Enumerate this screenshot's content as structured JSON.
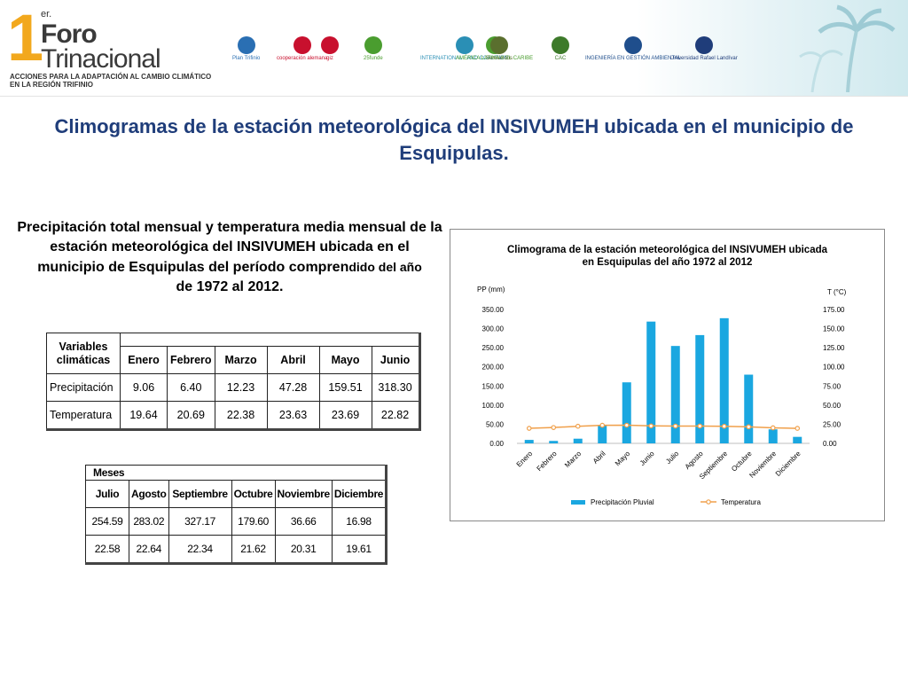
{
  "header": {
    "brand": {
      "number": "1",
      "superscript": "er.",
      "word1": "Foro",
      "word2": "Trinacional",
      "subtitle_line1": "ACCIONES PARA LA ADAPTACIÓN AL CAMBIO CLIMÁTICO",
      "subtitle_line2": "EN LA REGIÓN TRIFINIO"
    },
    "logos": [
      {
        "name": "plan-trifinio-logo",
        "label": "Plan Trifinio",
        "color": "#2a6fb3"
      },
      {
        "name": "cooperacion-alemana-logo",
        "label": "cooperación alemana",
        "color": "#c8102e"
      },
      {
        "name": "giz-logo",
        "label": "giz",
        "color": "#c8102e"
      },
      {
        "name": "25-funde-logo",
        "label": "25funde",
        "color": "#4a9d2f"
      },
      {
        "name": "international-land-coalition-logo",
        "label": "INTERNATIONAL LAND COALITION",
        "color": "#2a8fb5"
      },
      {
        "name": "america-latina-logo",
        "label": "AMÉRICA LATINA Y EL CARIBE",
        "color": "#4a9d2f"
      },
      {
        "name": "semiaridos-logo",
        "label": "Semiáridos",
        "color": "#5a6f2e"
      },
      {
        "name": "cac-logo",
        "label": "CAC",
        "color": "#3d7a2a"
      },
      {
        "name": "ingenieria-gestion-ambiental-logo",
        "label": "INGENIERÍA EN GESTIÓN AMBIENTAL",
        "color": "#1f4e8c"
      },
      {
        "name": "universidad-rafael-landivar-logo",
        "label": "Universidad Rafael Landívar",
        "color": "#1f3d7a"
      }
    ]
  },
  "slide_title": "Climogramas de la estación meteorológica del INSIVUMEH ubicada en el municipio de Esquipulas.",
  "description": {
    "main": "Precipitación total mensual y temperatura media mensual de la estación meteorológica del INSIVUMEH ubicada en el municipio de Esquipulas del período compren",
    "tail": "dido del año",
    "end": "de 1972 al 2012."
  },
  "table1": {
    "header_label": "Variables climáticas",
    "months": [
      "Enero",
      "Febrero",
      "Marzo",
      "Abril",
      "Mayo",
      "Junio"
    ],
    "rows": [
      {
        "label": "Precipitación",
        "values": [
          "9.06",
          "6.40",
          "12.23",
          "47.28",
          "159.51",
          "318.30"
        ]
      },
      {
        "label": "Temperatura",
        "values": [
          "19.64",
          "20.69",
          "22.38",
          "23.63",
          "23.69",
          "22.82"
        ]
      }
    ]
  },
  "table2": {
    "header_label": "Meses",
    "months": [
      "Julio",
      "Agosto",
      "Septiembre",
      "Octubre",
      "Noviembre",
      "Diciembre"
    ],
    "rows": [
      {
        "values": [
          "254.59",
          "283.02",
          "327.17",
          "179.60",
          "36.66",
          "16.98"
        ]
      },
      {
        "values": [
          "22.58",
          "22.64",
          "22.34",
          "21.62",
          "20.31",
          "19.61"
        ]
      }
    ]
  },
  "chart_data": {
    "type": "bar",
    "title": "Climograma de la estación meteorológica del INSIVUMEH ubicada en Esquipulas del año 1972 al 2012",
    "title_line1": "Climograma de la estación meteorológica del INSIVUMEH ubicada",
    "title_line2": "en Esquipulas del año 1972 al 2012",
    "ylabel_left": "PP (mm)",
    "ylabel_right": "T (°C)",
    "categories": [
      "Enero",
      "Febrero",
      "Marzo",
      "Abril",
      "Mayo",
      "Junio",
      "Julio",
      "Agosto",
      "Septiembre",
      "Octubre",
      "Noviembre",
      "Diciembre"
    ],
    "series": [
      {
        "name": "Precipitación Pluvial",
        "type": "bar",
        "axis": "left",
        "color": "#1aa7e0",
        "values": [
          9.06,
          6.4,
          12.23,
          47.28,
          159.51,
          318.3,
          254.59,
          283.02,
          327.17,
          179.6,
          36.66,
          16.98
        ]
      },
      {
        "name": "Temperatura",
        "type": "line",
        "axis": "right",
        "color": "#f0a04b",
        "values": [
          19.64,
          20.69,
          22.38,
          23.63,
          23.69,
          22.82,
          22.58,
          22.64,
          22.34,
          21.62,
          20.31,
          19.61
        ]
      }
    ],
    "ylim_left": [
      0,
      350
    ],
    "ylim_right": [
      0,
      175
    ],
    "yticks_left": [
      "0.00",
      "50.00",
      "100.00",
      "150.00",
      "200.00",
      "250.00",
      "300.00",
      "350.00"
    ],
    "yticks_right": [
      "0.00",
      "25.00",
      "50.00",
      "75.00",
      "100.00",
      "125.00",
      "150.00",
      "175.00"
    ],
    "grid": false,
    "legend_position": "bottom"
  }
}
